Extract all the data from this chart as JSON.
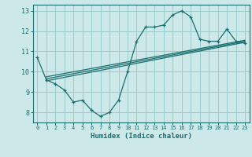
{
  "xlabel": "Humidex (Indice chaleur)",
  "background_color": "#cce8e8",
  "grid_color": "#99cccc",
  "line_color": "#1a6e6e",
  "xlim": [
    -0.5,
    23.5
  ],
  "ylim": [
    7.5,
    13.3
  ],
  "yticks": [
    8,
    9,
    10,
    11,
    12,
    13
  ],
  "xticks": [
    0,
    1,
    2,
    3,
    4,
    5,
    6,
    7,
    8,
    9,
    10,
    11,
    12,
    13,
    14,
    15,
    16,
    17,
    18,
    19,
    20,
    21,
    22,
    23
  ],
  "xtick_labels": [
    "0",
    "1",
    "2",
    "3",
    "4",
    "5",
    "6",
    "7",
    "8",
    "9",
    "10",
    "11",
    "12",
    "13",
    "14",
    "15",
    "16",
    "17",
    "18",
    "19",
    "20",
    "21",
    "22",
    "23"
  ],
  "main_series": [
    [
      0,
      10.7
    ],
    [
      1,
      9.6
    ],
    [
      2,
      9.4
    ],
    [
      3,
      9.1
    ],
    [
      4,
      8.5
    ],
    [
      5,
      8.6
    ],
    [
      6,
      8.1
    ],
    [
      7,
      7.8
    ],
    [
      8,
      8.0
    ],
    [
      9,
      8.6
    ],
    [
      10,
      10.0
    ],
    [
      11,
      11.5
    ],
    [
      12,
      12.2
    ],
    [
      13,
      12.2
    ],
    [
      14,
      12.3
    ],
    [
      15,
      12.8
    ],
    [
      16,
      13.0
    ],
    [
      17,
      12.7
    ],
    [
      18,
      11.6
    ],
    [
      19,
      11.5
    ],
    [
      20,
      11.5
    ],
    [
      21,
      12.1
    ],
    [
      22,
      11.5
    ],
    [
      23,
      11.4
    ]
  ],
  "linear_series": [
    [
      [
        1,
        9.55
      ],
      [
        23,
        11.45
      ]
    ],
    [
      [
        1,
        9.65
      ],
      [
        23,
        11.5
      ]
    ],
    [
      [
        1,
        9.75
      ],
      [
        23,
        11.55
      ]
    ]
  ]
}
